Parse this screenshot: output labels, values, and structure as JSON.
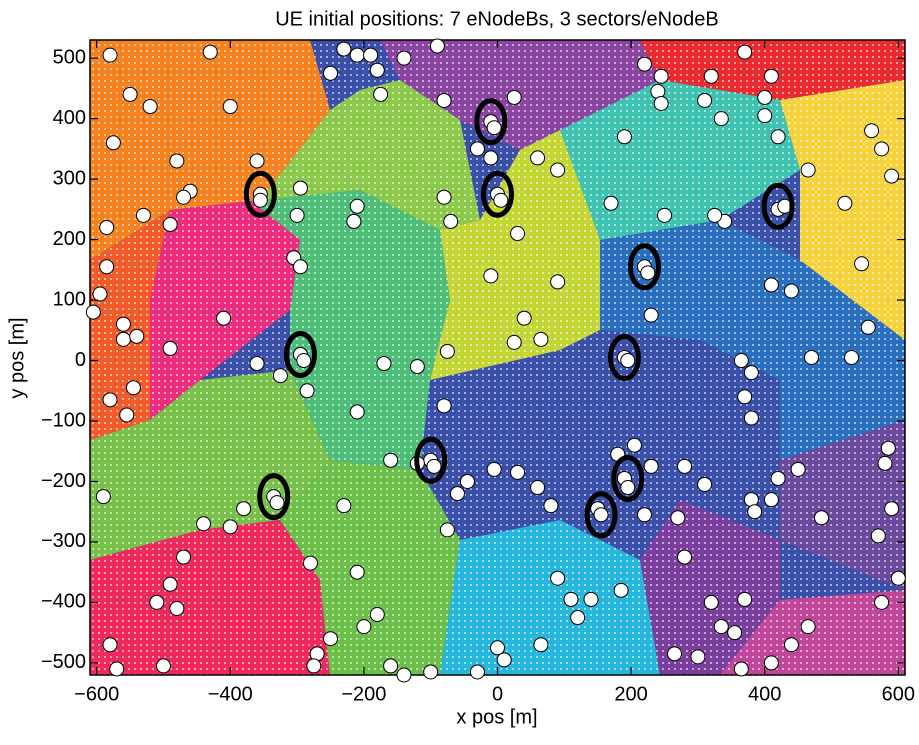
{
  "chart_data": {
    "type": "scatter",
    "title": "UE initial positions: 7 eNodeBs, 3 sectors/eNodeB",
    "xlabel": "x pos [m]",
    "ylabel": "y pos [m]",
    "xlim": [
      -610,
      610
    ],
    "ylim": [
      -520,
      530
    ],
    "xticks": [
      {
        "value": -600,
        "label": "−600"
      },
      {
        "value": -400,
        "label": "−400"
      },
      {
        "value": -200,
        "label": "−200"
      },
      0,
      200,
      400,
      600
    ],
    "yticks": [
      {
        "value": -500,
        "label": "−500"
      },
      {
        "value": -400,
        "label": "−400"
      },
      {
        "value": -300,
        "label": "−300"
      },
      {
        "value": -200,
        "label": "−200"
      },
      {
        "value": -100,
        "label": "−100"
      },
      0,
      100,
      200,
      300,
      400,
      500
    ],
    "grid": false,
    "series": [
      {
        "color": "#ffffff",
        "marker": "circle",
        "x": [
          -580,
          -430,
          -550,
          -520,
          -400,
          -250,
          -230,
          -210,
          -190,
          -180,
          -175,
          -140,
          -90,
          25,
          220,
          245,
          240,
          245,
          320,
          310,
          370,
          410,
          400,
          335,
          190,
          -10,
          -5,
          -30,
          -10,
          60,
          90,
          -80,
          -575,
          -480,
          -360,
          -355,
          -355,
          -295,
          -300,
          -460,
          -470,
          -530,
          -490,
          -585,
          -585,
          -595,
          -605,
          -560,
          -560,
          -540,
          -490,
          -410,
          -305,
          -295,
          -210,
          -215,
          -80,
          -70,
          0,
          5,
          30,
          -10,
          170,
          250,
          340,
          420,
          430,
          520,
          545,
          555,
          560,
          575,
          590,
          465,
          410,
          440,
          220,
          225,
          230,
          90,
          40,
          25,
          65,
          -75,
          -120,
          -170,
          -295,
          -290,
          -285,
          -325,
          -360,
          -545,
          -580,
          -555,
          -210,
          -80,
          190,
          195,
          325,
          400,
          420,
          -160,
          -100,
          -95,
          -120,
          -60,
          -45,
          -5,
          30,
          60,
          80,
          -75,
          -590,
          -380,
          -335,
          -330,
          -440,
          -400,
          -470,
          -490,
          -480,
          -510,
          -500,
          -580,
          -570,
          -280,
          -270,
          -275,
          -210,
          -230,
          -180,
          -200,
          -250,
          -160,
          -140,
          -100,
          -30,
          0,
          10,
          65,
          90,
          110,
          120,
          140,
          150,
          155,
          185,
          180,
          205,
          190,
          195,
          230,
          220,
          280,
          310,
          270,
          280,
          265,
          300,
          320,
          335,
          355,
          365,
          370,
          380,
          385,
          410,
          420,
          440,
          465,
          410,
          450,
          485,
          570,
          575,
          580,
          585,
          590,
          600,
          370,
          380,
          365,
          380,
          470,
          530
        ],
        "y": [
          505,
          510,
          440,
          420,
          420,
          475,
          515,
          505,
          505,
          480,
          440,
          500,
          520,
          435,
          490,
          470,
          445,
          425,
          470,
          430,
          510,
          470,
          435,
          400,
          370,
          395,
          385,
          350,
          335,
          335,
          315,
          430,
          360,
          330,
          330,
          275,
          265,
          285,
          240,
          280,
          270,
          240,
          225,
          220,
          155,
          110,
          80,
          60,
          35,
          40,
          20,
          70,
          170,
          155,
          255,
          230,
          270,
          230,
          275,
          265,
          210,
          140,
          260,
          240,
          230,
          250,
          255,
          260,
          160,
          55,
          380,
          350,
          305,
          315,
          125,
          115,
          155,
          145,
          75,
          130,
          70,
          30,
          35,
          15,
          -10,
          -5,
          10,
          0,
          -50,
          -25,
          -5,
          -45,
          -65,
          -90,
          -85,
          -75,
          5,
          0,
          240,
          405,
          370,
          -165,
          -165,
          -175,
          -170,
          -220,
          -200,
          -180,
          -185,
          -210,
          -240,
          -280,
          -225,
          -245,
          -225,
          -235,
          -270,
          -275,
          -325,
          -370,
          -410,
          -400,
          -505,
          -470,
          -510,
          -335,
          -485,
          -505,
          -350,
          -240,
          -420,
          -440,
          -460,
          -505,
          -520,
          -515,
          -515,
          -475,
          -495,
          -470,
          -360,
          -395,
          -425,
          -395,
          -245,
          -255,
          -380,
          -155,
          -140,
          -195,
          -210,
          -175,
          -255,
          -175,
          -205,
          -260,
          -325,
          -485,
          -490,
          -400,
          -440,
          -450,
          -510,
          -395,
          -230,
          -250,
          -230,
          -195,
          -470,
          -440,
          -500,
          -180,
          -260,
          -290,
          -400,
          -170,
          -145,
          -245,
          -360,
          -60,
          -95,
          0,
          -20,
          5,
          5
        ]
      },
      {
        "color": "#000000",
        "marker": "ellipse",
        "x": [
          -10,
          0,
          -355,
          420,
          220,
          -295,
          190,
          -100,
          -335,
          195,
          155
        ],
        "y": [
          395,
          275,
          275,
          255,
          155,
          10,
          5,
          -165,
          -225,
          -195,
          -255
        ]
      }
    ]
  }
}
